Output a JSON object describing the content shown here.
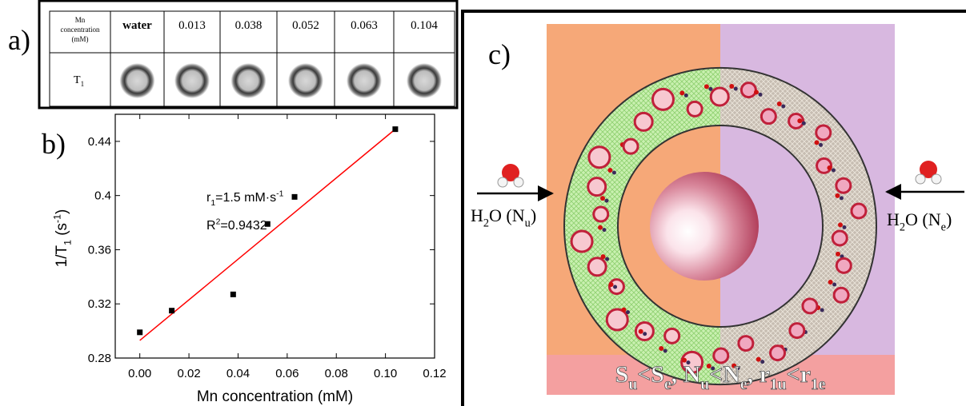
{
  "panel_a": {
    "label": "a)",
    "header_label": [
      "Mn",
      "concentration",
      "(mM)"
    ],
    "columns": [
      "water",
      "0.013",
      "0.038",
      "0.052",
      "0.063",
      "0.104"
    ],
    "row_label": [
      {
        "t": "T",
        "sub": "1"
      }
    ]
  },
  "panel_b_label": "b)",
  "chart_data": {
    "type": "scatter",
    "x": [
      0,
      0.013,
      0.038,
      0.052,
      0.063,
      0.104
    ],
    "values": [
      0.299,
      0.315,
      0.327,
      0.379,
      0.399,
      0.449
    ],
    "color": "#000000",
    "fit": {
      "x": [
        0,
        0.104
      ],
      "y": [
        0.293,
        0.449
      ],
      "color": "#ff0000"
    },
    "xlabel": "Mn concentration (mM)",
    "ylabel": [
      {
        "t": "1/T",
        "sub": "1"
      },
      {
        "t": " (s",
        "sup": "-1"
      },
      {
        "t": ")"
      }
    ],
    "annotations": [
      [
        {
          "t": "r",
          "sub": "1"
        },
        {
          "t": "=1.5 mM·s",
          "sup": "-1"
        }
      ],
      [
        {
          "t": "R",
          "sup": "2"
        },
        {
          "t": "=0.9432"
        }
      ]
    ],
    "xlim": [
      -0.01,
      0.12
    ],
    "xticks": [
      {
        "value": 0,
        "label": "0.00"
      },
      0.02,
      0.04,
      0.06,
      0.08,
      {
        "value": 0.1,
        "label": "0.10"
      },
      0.12
    ],
    "ylim": [
      0.28,
      0.46
    ],
    "yticks": [
      0.28,
      0.32,
      0.36,
      0.4,
      0.44
    ]
  },
  "panel_c": {
    "label": "c)",
    "left_input": [
      {
        "t": "H",
        "sub": "2"
      },
      {
        "t": "O (N",
        "sub": "u"
      },
      {
        "t": ")"
      }
    ],
    "right_input": [
      {
        "t": "H",
        "sub": "2"
      },
      {
        "t": "O (N",
        "sub": "e"
      },
      {
        "t": ")"
      }
    ],
    "relation": [
      {
        "t": "S",
        "sub": "u"
      },
      {
        "t": "<S",
        "sub": "e"
      },
      {
        "t": ",  N",
        "sub": "u"
      },
      {
        "t": "<N",
        "sub": "e"
      },
      {
        "t": ",  r",
        "sub": "1u"
      },
      {
        "t": "<r",
        "sub": "1e"
      }
    ]
  }
}
